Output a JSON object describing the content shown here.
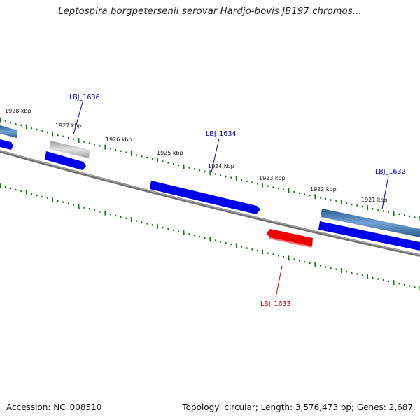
{
  "title": "Leptospira borgpetersenii serovar Hardjo-bovis JB197 chromos...",
  "footer": {
    "accession": "Accession: NC_008510",
    "summary": "Topology: circular; Length: 3,576,473 bp; Genes: 2,687"
  },
  "colors": {
    "backbone": "#808080",
    "cds_forward": "#0000ee",
    "cds_reverse": "#ee0000",
    "gene_forward": "#4a7fb5",
    "pseudogene": "#bbbbbb",
    "tick": "#117711",
    "gene_label_forward": "#0000aa",
    "gene_label_reverse": "#cc0000"
  },
  "scale_labels": [
    "1928 kbp",
    "1927 kbp",
    "1926 kbp",
    "1925 kbp",
    "1924 kbp",
    "1923 kbp",
    "1922 kbp",
    "1921 kbp"
  ],
  "gene_labels": [
    {
      "name": "LBJ_1636",
      "strand": "forward"
    },
    {
      "name": "LBJ_1634",
      "strand": "forward"
    },
    {
      "name": "LBJ_1632",
      "strand": "forward"
    },
    {
      "name": "LBJ_1633",
      "strand": "reverse"
    }
  ]
}
